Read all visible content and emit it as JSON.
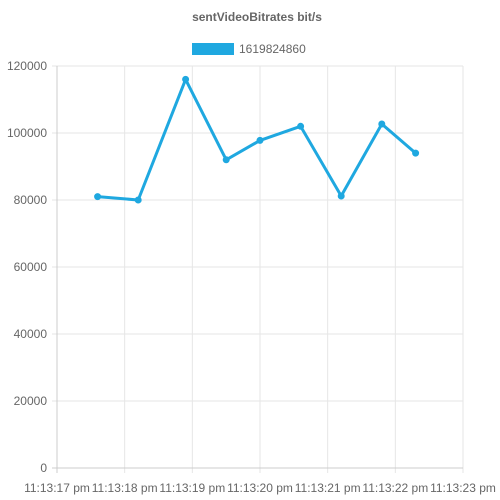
{
  "chart_data": {
    "type": "line",
    "title": "sentVideoBitrates bit/s",
    "xlabel": "",
    "ylabel": "",
    "x": [
      "11:13:17 pm",
      "11:13:18 pm",
      "11:13:19 pm",
      "11:13:20 pm",
      "11:13:21 pm",
      "11:13:22 pm",
      "11:13:23 pm"
    ],
    "ylim": [
      0,
      120000
    ],
    "yticks": [
      0,
      20000,
      40000,
      60000,
      80000,
      100000,
      120000
    ],
    "grid": true,
    "legend_position": "top",
    "series": [
      {
        "name": "1619824860",
        "color": "#1fa8e0",
        "points": [
          {
            "x": "11:13:17.6",
            "y": 81000
          },
          {
            "x": "11:13:18.2",
            "y": 80000
          },
          {
            "x": "11:13:18.9",
            "y": 116000
          },
          {
            "x": "11:13:19.5",
            "y": 92000
          },
          {
            "x": "11:13:20.0",
            "y": 97800
          },
          {
            "x": "11:13:20.6",
            "y": 102000
          },
          {
            "x": "11:13:21.2",
            "y": 81200
          },
          {
            "x": "11:13:21.8",
            "y": 102700
          },
          {
            "x": "11:13:22.3",
            "y": 94000
          }
        ]
      }
    ]
  }
}
